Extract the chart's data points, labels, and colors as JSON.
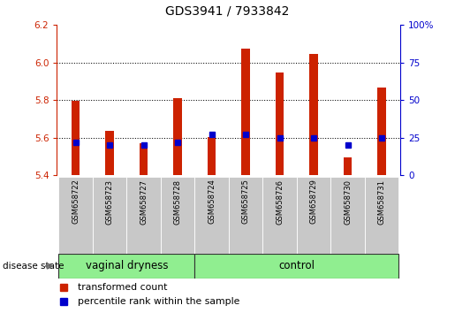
{
  "title": "GDS3941 / 7933842",
  "samples": [
    "GSM658722",
    "GSM658723",
    "GSM658727",
    "GSM658728",
    "GSM658724",
    "GSM658725",
    "GSM658726",
    "GSM658729",
    "GSM658730",
    "GSM658731"
  ],
  "red_values": [
    5.795,
    5.635,
    5.57,
    5.81,
    5.605,
    6.075,
    5.945,
    6.045,
    5.495,
    5.865
  ],
  "blue_pct": [
    22,
    20,
    20,
    22,
    27,
    27,
    25,
    25,
    20,
    25
  ],
  "y_min": 5.4,
  "y_max": 6.2,
  "y_ticks": [
    5.4,
    5.6,
    5.8,
    6.0,
    6.2
  ],
  "right_y_ticks": [
    0,
    25,
    50,
    75,
    100
  ],
  "right_y_labels": [
    "0",
    "25",
    "50",
    "75",
    "100%"
  ],
  "bar_color": "#CC2200",
  "blue_color": "#0000CC",
  "axis_color_left": "#CC2200",
  "axis_color_right": "#0000CC",
  "bar_width": 0.25,
  "grid_lines": [
    5.6,
    5.8,
    6.0
  ],
  "legend_labels": [
    "transformed count",
    "percentile rank within the sample"
  ],
  "group1_label": "vaginal dryness",
  "group1_count": 4,
  "group2_label": "control",
  "group2_count": 6,
  "group_color": "#90EE90",
  "label_bg_color": "#C8C8C8",
  "disease_state_label": "disease state"
}
